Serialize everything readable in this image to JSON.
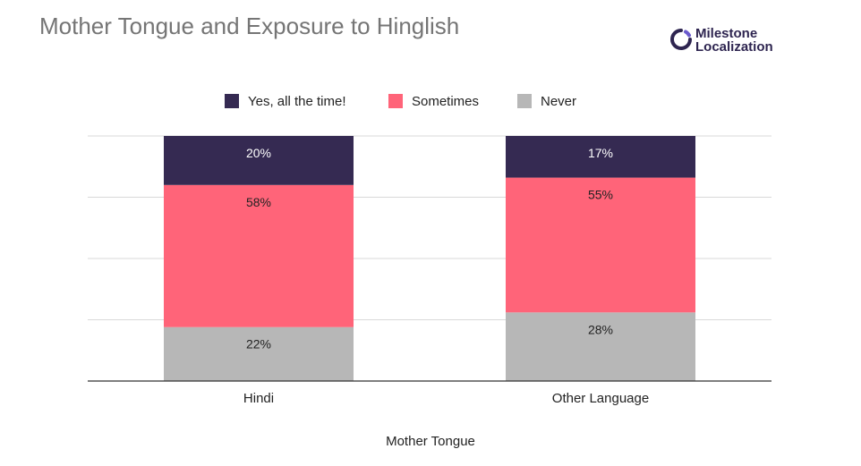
{
  "title": "Mother Tongue and Exposure to Hinglish",
  "logo": {
    "line1": "Milestone",
    "line2": "Localization",
    "color": "#2e2550",
    "accent": "#6a5acd",
    "icon": "milestone-ring-icon"
  },
  "chart_data": {
    "type": "bar",
    "stacked": true,
    "categories": [
      "Hindi",
      "Other Language"
    ],
    "series": [
      {
        "name": "Never",
        "values": [
          22,
          28
        ],
        "labels": [
          "22%",
          "28%"
        ],
        "color": "#b7b7b7"
      },
      {
        "name": "Sometimes",
        "values": [
          58,
          55
        ],
        "labels": [
          "58%",
          "55%"
        ],
        "color": "#ff6479"
      },
      {
        "name": "Yes, all the time!",
        "values": [
          20,
          17
        ],
        "labels": [
          "20%",
          "17%"
        ],
        "color": "#352a52"
      }
    ],
    "legend_order": [
      "Yes, all the time!",
      "Sometimes",
      "Never"
    ],
    "legend_position": "top",
    "xlabel": "Mother Tongue",
    "ylabel": "",
    "ylim": [
      0,
      100
    ],
    "grid": true,
    "y_ticks_shown": false
  }
}
